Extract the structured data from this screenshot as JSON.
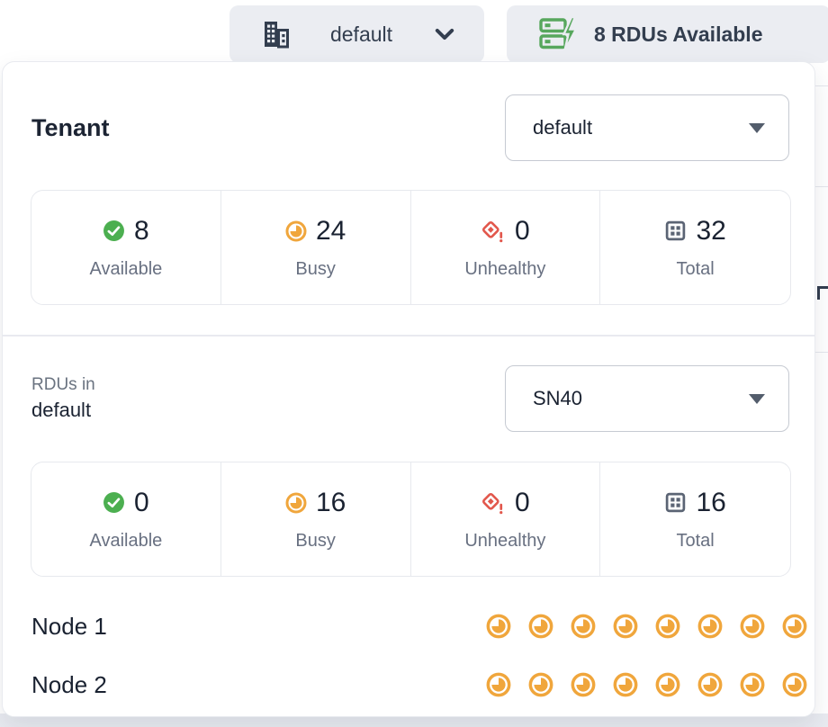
{
  "toolbar": {
    "tenant_button": {
      "label": "default",
      "icon": "building-icon"
    },
    "rdu_button": {
      "label": "8 RDUs Available",
      "icon": "rdu-server-bolt-icon"
    }
  },
  "panel": {
    "tenant": {
      "title": "Tenant",
      "select_value": "default",
      "stats": [
        {
          "icon": "check-circle-icon",
          "value": "8",
          "label": "Available"
        },
        {
          "icon": "busy-clock-icon",
          "value": "24",
          "label": "Busy"
        },
        {
          "icon": "unhealthy-diamond-icon",
          "value": "0",
          "label": "Unhealthy"
        },
        {
          "icon": "total-grid-icon",
          "value": "32",
          "label": "Total"
        }
      ]
    },
    "rdus": {
      "label_prefix": "RDUs in",
      "label_tenant": "default",
      "select_value": "SN40",
      "stats": [
        {
          "icon": "check-circle-icon",
          "value": "0",
          "label": "Available"
        },
        {
          "icon": "busy-clock-icon",
          "value": "16",
          "label": "Busy"
        },
        {
          "icon": "unhealthy-diamond-icon",
          "value": "0",
          "label": "Unhealthy"
        },
        {
          "icon": "total-grid-icon",
          "value": "16",
          "label": "Total"
        }
      ],
      "nodes": [
        {
          "label": "Node 1",
          "busy": 8
        },
        {
          "label": "Node 2",
          "busy": 8
        }
      ]
    }
  },
  "colors": {
    "navy_text": "#333e4f",
    "available_green": "#4caf50",
    "rdu_green": "#57a75d",
    "busy_orange": "#f0a63c",
    "unhealthy_red": "#e2574c",
    "total_gray": "#5b6474",
    "button_bg": "#ebedf2",
    "border": "#e7e9ee"
  }
}
